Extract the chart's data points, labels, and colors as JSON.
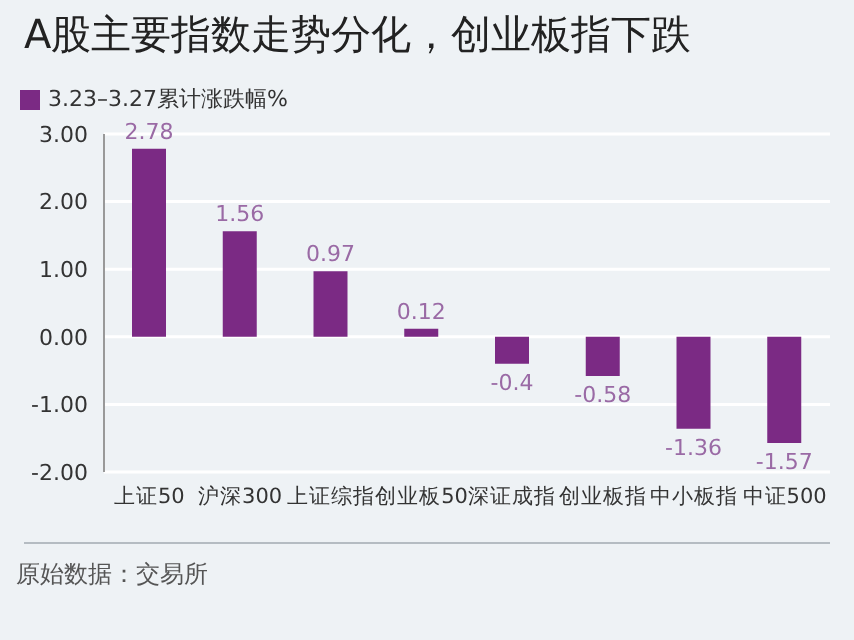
{
  "chart_data": {
    "type": "bar",
    "title": "A股主要指数走势分化，创业板指下跌",
    "categories": [
      "上证50",
      "沪深300",
      "上证综指",
      "创业板50",
      "深证成指",
      "创业板指",
      "中小板指",
      "中证500"
    ],
    "series": [
      {
        "name": "3.23–3.27累计涨跌幅%",
        "color": "#7b2a84",
        "values": [
          2.78,
          1.56,
          0.97,
          0.12,
          -0.4,
          -0.58,
          -1.36,
          -1.57
        ]
      }
    ],
    "ylim": [
      -2,
      3
    ],
    "yticks": [
      {
        "value": -2,
        "label": "-2.00"
      },
      {
        "value": -1,
        "label": "-1.00"
      },
      {
        "value": 0,
        "label": "0.00"
      },
      {
        "value": 1,
        "label": "1.00"
      },
      {
        "value": 2,
        "label": "2.00"
      },
      {
        "value": 3,
        "label": "3.00"
      }
    ],
    "grid": "y",
    "legend": "top left",
    "data_labels": true,
    "annotations": [
      "原始数据：交易所"
    ]
  }
}
